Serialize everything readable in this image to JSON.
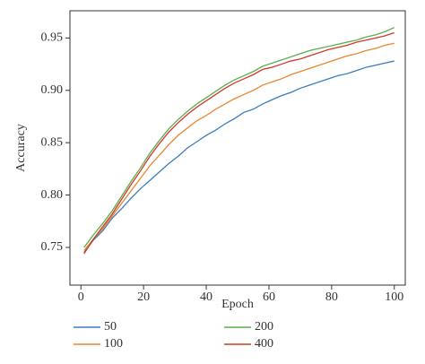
{
  "chart_data": {
    "type": "line",
    "x_label": "Epoch",
    "y_label": "Accuracy",
    "x": [
      1,
      4,
      7,
      10,
      13,
      16,
      19,
      22,
      25,
      28,
      31,
      34,
      37,
      40,
      43,
      46,
      49,
      52,
      55,
      58,
      61,
      64,
      67,
      70,
      73,
      76,
      79,
      82,
      85,
      88,
      91,
      94,
      97,
      100
    ],
    "series": [
      {
        "name": "50",
        "color": "#3b7dbd",
        "values": [
          0.745,
          0.757,
          0.766,
          0.778,
          0.787,
          0.797,
          0.806,
          0.814,
          0.822,
          0.83,
          0.837,
          0.845,
          0.851,
          0.857,
          0.862,
          0.868,
          0.873,
          0.879,
          0.882,
          0.887,
          0.891,
          0.895,
          0.898,
          0.902,
          0.905,
          0.908,
          0.911,
          0.914,
          0.916,
          0.919,
          0.922,
          0.924,
          0.926,
          0.928
        ]
      },
      {
        "name": "100",
        "color": "#ea8630",
        "values": [
          0.747,
          0.758,
          0.768,
          0.78,
          0.792,
          0.804,
          0.816,
          0.828,
          0.838,
          0.848,
          0.857,
          0.864,
          0.871,
          0.876,
          0.882,
          0.887,
          0.892,
          0.896,
          0.9,
          0.905,
          0.908,
          0.911,
          0.915,
          0.918,
          0.921,
          0.924,
          0.927,
          0.93,
          0.933,
          0.935,
          0.938,
          0.94,
          0.943,
          0.945
        ]
      },
      {
        "name": "200",
        "color": "#5aae4e",
        "values": [
          0.75,
          0.762,
          0.773,
          0.785,
          0.799,
          0.813,
          0.826,
          0.84,
          0.852,
          0.863,
          0.872,
          0.88,
          0.887,
          0.893,
          0.899,
          0.905,
          0.91,
          0.914,
          0.918,
          0.923,
          0.926,
          0.929,
          0.932,
          0.935,
          0.938,
          0.94,
          0.942,
          0.944,
          0.946,
          0.948,
          0.951,
          0.953,
          0.956,
          0.96
        ]
      },
      {
        "name": "400",
        "color": "#cf3a2c",
        "values": [
          0.744,
          0.758,
          0.77,
          0.782,
          0.796,
          0.81,
          0.823,
          0.837,
          0.849,
          0.86,
          0.869,
          0.877,
          0.884,
          0.89,
          0.896,
          0.902,
          0.907,
          0.911,
          0.915,
          0.92,
          0.922,
          0.925,
          0.928,
          0.93,
          0.933,
          0.936,
          0.939,
          0.941,
          0.943,
          0.946,
          0.948,
          0.95,
          0.952,
          0.955
        ]
      }
    ],
    "xlim": [
      -3.5,
      103.5
    ],
    "xticks": [
      0,
      20,
      40,
      60,
      80,
      100
    ],
    "ylim": [
      0.714,
      0.976
    ],
    "yticks": [
      0.75,
      {
        "value": 0.8,
        "label": "0.80"
      },
      0.85,
      {
        "value": 0.9,
        "label": "0.90"
      },
      0.95
    ],
    "grid": false
  }
}
